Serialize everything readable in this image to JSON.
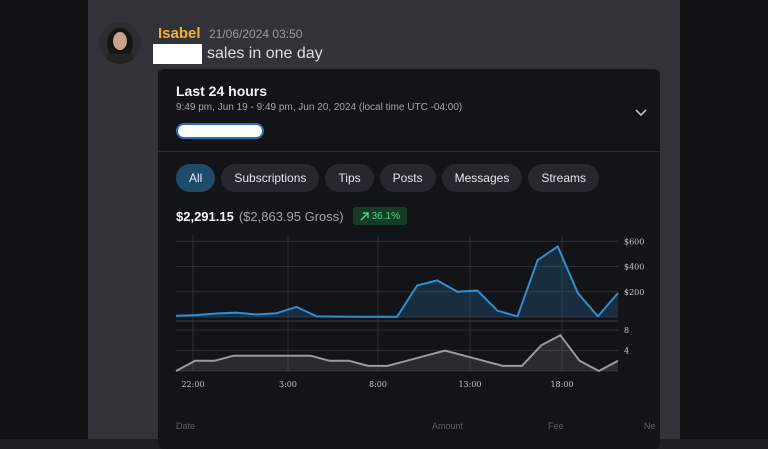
{
  "message": {
    "username": "Isabel",
    "timestamp": "21/06/2024 03:50",
    "text": "sales in one day",
    "avatar_icon": "user-avatar"
  },
  "card": {
    "title": "Last 24 hours",
    "subtitle": "9:49 pm, Jun 19 - 9:49 pm, Jun 20, 2024 (local time UTC -04:00)",
    "tabs": [
      {
        "label": "All",
        "active": true
      },
      {
        "label": "Subscriptions",
        "active": false
      },
      {
        "label": "Tips",
        "active": false
      },
      {
        "label": "Posts",
        "active": false
      },
      {
        "label": "Messages",
        "active": false
      },
      {
        "label": "Streams",
        "active": false
      }
    ],
    "net": "$2,291.15",
    "gross": "($2,863.95 Gross)",
    "growth": "36.1%",
    "footer": {
      "col_date": "Date",
      "col_amount": "Amount",
      "col_fee": "Fee",
      "col_net": "Ne"
    }
  },
  "colors": {
    "accent_blue": "#2f8fd0",
    "gray_line": "#9a9a9a",
    "growth_green": "#3ddc84",
    "username": "#f0b232"
  },
  "chart_data": [
    {
      "type": "area",
      "series": [
        {
          "values": [
            10,
            15,
            28,
            35,
            20,
            30,
            80,
            5,
            3,
            2,
            2,
            1,
            250,
            290,
            200,
            210,
            50,
            5,
            450,
            560,
            190,
            5,
            190
          ]
        }
      ],
      "y_ticks": [
        "$600",
        "$400",
        "$200"
      ],
      "ylim": [
        0,
        650
      ]
    },
    {
      "type": "area",
      "series": [
        {
          "values": [
            0,
            2,
            2,
            3,
            3,
            3,
            3,
            3,
            2,
            2,
            1,
            1,
            2,
            3,
            4,
            3,
            2,
            1,
            1,
            5,
            7,
            2,
            0,
            2
          ]
        }
      ],
      "x_ticks": [
        "22:00",
        "3:00",
        "8:00",
        "13:00",
        "18:00"
      ],
      "y_ticks": [
        "8",
        "4"
      ],
      "ylim": [
        0,
        9
      ]
    }
  ]
}
